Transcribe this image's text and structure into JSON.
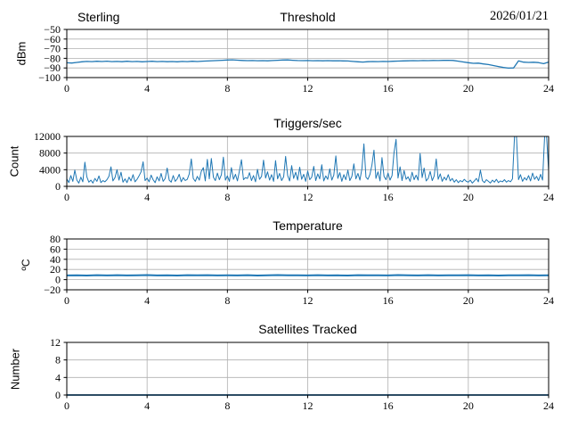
{
  "figure": {
    "background": "#ffffff",
    "line_color": "#1f77b4",
    "grid_color": "#b0b0b0",
    "axis_color": "#000000"
  },
  "chart_data": [
    {
      "type": "line",
      "title": "Threshold",
      "title_left": "Sterling",
      "title_right": "2026/01/21",
      "ylabel": "dBm",
      "xlim": [
        0,
        24
      ],
      "ylim": [
        -100,
        -50
      ],
      "xticks": [
        0,
        4,
        8,
        12,
        16,
        20,
        24
      ],
      "yticks": [
        -50,
        -60,
        -70,
        -80,
        -90,
        -100
      ],
      "grid": true,
      "legend": false,
      "x_start": 0,
      "x_step": 0.25,
      "y": [
        -84.6,
        -84.9,
        -84.3,
        -83.6,
        -83.2,
        -83.4,
        -83.1,
        -83.3,
        -83.0,
        -83.4,
        -83.2,
        -83.5,
        -83.1,
        -83.4,
        -83.2,
        -83.6,
        -83.3,
        -83.1,
        -83.4,
        -83.2,
        -83.5,
        -83.3,
        -83.6,
        -83.2,
        -83.4,
        -83.1,
        -83.3,
        -83.0,
        -82.8,
        -82.5,
        -82.3,
        -82.0,
        -81.8,
        -81.6,
        -81.9,
        -82.2,
        -82.4,
        -82.3,
        -82.5,
        -82.4,
        -82.6,
        -82.3,
        -82.0,
        -81.8,
        -81.7,
        -82.0,
        -82.3,
        -82.4,
        -82.3,
        -82.5,
        -82.4,
        -82.6,
        -82.4,
        -82.6,
        -82.5,
        -82.7,
        -82.8,
        -83.2,
        -83.6,
        -83.9,
        -83.5,
        -83.3,
        -83.4,
        -83.2,
        -83.3,
        -83.1,
        -82.9,
        -82.7,
        -82.6,
        -82.4,
        -82.5,
        -82.3,
        -82.4,
        -82.2,
        -82.3,
        -82.1,
        -82.0,
        -82.2,
        -83.0,
        -83.8,
        -84.5,
        -85.2,
        -85.0,
        -85.8,
        -86.5,
        -87.5,
        -88.5,
        -89.5,
        -90.2,
        -90.0,
        -82.7,
        -84.0,
        -84.3,
        -84.1,
        -84.4,
        -85.6,
        -83.9
      ]
    },
    {
      "type": "line",
      "title": "Triggers/sec",
      "ylabel": "Count",
      "xlim": [
        0,
        24
      ],
      "ylim": [
        0,
        12000
      ],
      "xticks": [
        0,
        4,
        8,
        12,
        16,
        20,
        24
      ],
      "yticks": [
        0,
        4000,
        8000,
        12000
      ],
      "grid": true,
      "legend": false,
      "x_start": 0,
      "x_step": 0.1,
      "y": [
        1800,
        900,
        2600,
        1200,
        3900,
        1500,
        800,
        2200,
        1100,
        5800,
        2300,
        1000,
        1500,
        800,
        1900,
        1200,
        2500,
        900,
        1400,
        1100,
        1600,
        2400,
        4700,
        1300,
        2100,
        4000,
        1500,
        3400,
        1000,
        1800,
        900,
        2200,
        1300,
        2800,
        1100,
        1700,
        2500,
        3500,
        5900,
        1400,
        2000,
        1100,
        2700,
        1600,
        900,
        2300,
        1300,
        3100,
        1200,
        1900,
        4400,
        1500,
        1000,
        2600,
        1200,
        1800,
        2900,
        1100,
        2100,
        1400,
        1700,
        3000,
        6600,
        1900,
        1200,
        2400,
        1500,
        3600,
        4500,
        1300,
        6500,
        1800,
        6700,
        2200,
        1400,
        3200,
        1600,
        2800,
        7000,
        1500,
        2500,
        1200,
        4500,
        1700,
        2900,
        1300,
        3800,
        6400,
        1600,
        2100,
        1900,
        3300,
        1400,
        2600,
        1100,
        4100,
        1700,
        2400,
        6300,
        2000,
        3500,
        1500,
        2800,
        1200,
        6200,
        1800,
        3100,
        1400,
        2300,
        7200,
        2600,
        1300,
        5000,
        1900,
        3400,
        1500,
        4600,
        1700,
        2900,
        1200,
        3700,
        1600,
        2200,
        4800,
        1400,
        3000,
        1800,
        5200,
        1300,
        2500,
        1700,
        4200,
        1500,
        2700,
        7300,
        1900,
        3300,
        1200,
        2800,
        1600,
        3900,
        1400,
        2400,
        5400,
        1800,
        3100,
        1500,
        4300,
        10200,
        2200,
        1700,
        2900,
        5100,
        8700,
        1900,
        3500,
        1300,
        6900,
        2400,
        1600,
        3200,
        1500,
        2600,
        8100,
        11300,
        2000,
        4700,
        1400,
        3800,
        1700,
        2300,
        1200,
        3400,
        1600,
        2700,
        1500,
        7900,
        2100,
        4400,
        1300,
        1900,
        3600,
        1400,
        2500,
        6600,
        1700,
        3000,
        1200,
        2200,
        1500,
        2800,
        1300,
        1900,
        1000,
        1600,
        900,
        1400,
        1100,
        1700,
        1200,
        1000,
        1500,
        800,
        1300,
        1900,
        1100,
        3900,
        1400,
        900,
        1600,
        1200,
        800,
        1500,
        1000,
        1700,
        900,
        1300,
        1100,
        1600,
        1000,
        1400,
        1100,
        1800,
        15000,
        14000,
        1600,
        2800,
        1200,
        2100,
        1500,
        2600,
        1300,
        3200,
        1700,
        2400,
        1400,
        2900,
        1500,
        15000,
        14000,
        3800
      ]
    },
    {
      "type": "line",
      "title": "Temperature",
      "ylabel": "ºC",
      "xlim": [
        0,
        24
      ],
      "ylim": [
        -20,
        80
      ],
      "xticks": [
        0,
        4,
        8,
        12,
        16,
        20,
        24
      ],
      "yticks": [
        80,
        60,
        40,
        20,
        0,
        -20
      ],
      "grid": true,
      "legend": false,
      "x_start": 0,
      "x_step": 0.5,
      "y": [
        8.2,
        8.6,
        8.1,
        8.8,
        8.3,
        8.7,
        8.2,
        8.5,
        8.9,
        8.3,
        8.6,
        8.1,
        8.7,
        8.4,
        8.8,
        8.2,
        8.6,
        8.3,
        8.7,
        8.1,
        8.5,
        8.9,
        8.4,
        8.6,
        8.2,
        8.8,
        8.3,
        8.5,
        8.1,
        8.7,
        8.4,
        8.6,
        8.2,
        8.9,
        8.5,
        8.3,
        8.7,
        8.2,
        8.6,
        8.4,
        8.8,
        8.3,
        8.5,
        8.1,
        8.6,
        8.4,
        8.7,
        8.3,
        8.5
      ]
    },
    {
      "type": "line",
      "title": "Satellites Tracked",
      "ylabel": "Number",
      "xlim": [
        0,
        24
      ],
      "ylim": [
        0,
        12
      ],
      "xticks": [
        0,
        4,
        8,
        12,
        16,
        20,
        24
      ],
      "yticks": [
        12,
        8,
        4,
        0
      ],
      "grid": true,
      "legend": false,
      "x_start": 0,
      "x_step": 24,
      "y": [
        0,
        0
      ]
    }
  ]
}
